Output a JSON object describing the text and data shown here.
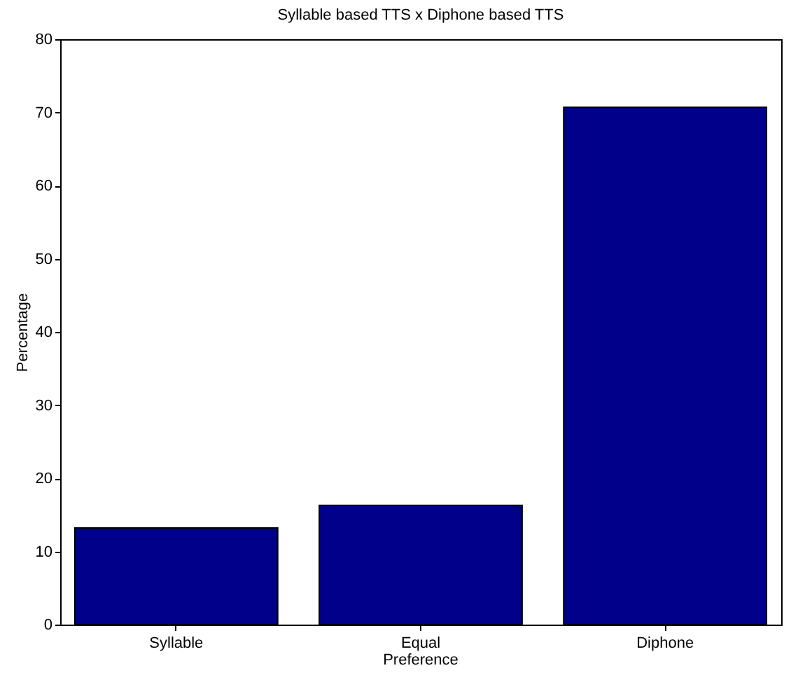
{
  "chart_data": {
    "type": "bar",
    "title": "Syllable based TTS x Diphone based TTS",
    "ylabel": "Percentage",
    "categories": [
      "Syllable",
      "Equal Preference",
      "Diphone"
    ],
    "values": [
      13.2,
      16.3,
      70.7
    ],
    "color": "#00008b",
    "ylim": [
      0,
      80
    ],
    "yticks": [
      0,
      10,
      20,
      30,
      40,
      50,
      60,
      70,
      80
    ],
    "grid": false
  }
}
